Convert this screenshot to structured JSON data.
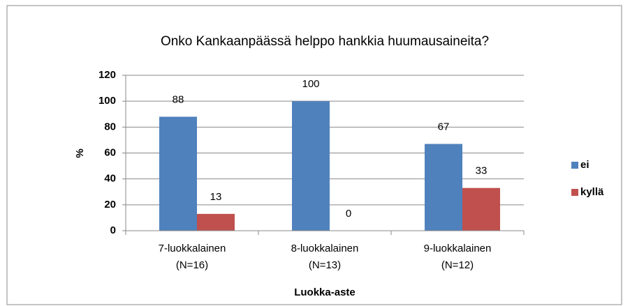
{
  "chart_data": {
    "type": "bar",
    "title": "Onko Kankaanpäässä helppo hankkia huumausaineita?",
    "categories": [
      [
        "7-luokkalainen",
        "(N=16)"
      ],
      [
        "8-luokkalainen",
        "(N=13)"
      ],
      [
        "9-luokkalainen",
        "(N=12)"
      ]
    ],
    "series": [
      {
        "name": "ei",
        "color": "#4f81bd",
        "values": [
          88,
          100,
          67
        ]
      },
      {
        "name": "kyllä",
        "color": "#c0504d",
        "values": [
          13,
          0,
          33
        ]
      }
    ],
    "ylim": [
      0,
      120
    ],
    "yticks": [
      0,
      20,
      40,
      60,
      80,
      100,
      120
    ],
    "ylabel": "%",
    "xlabel": "Luokka-aste",
    "grid": true,
    "legend": "right"
  }
}
